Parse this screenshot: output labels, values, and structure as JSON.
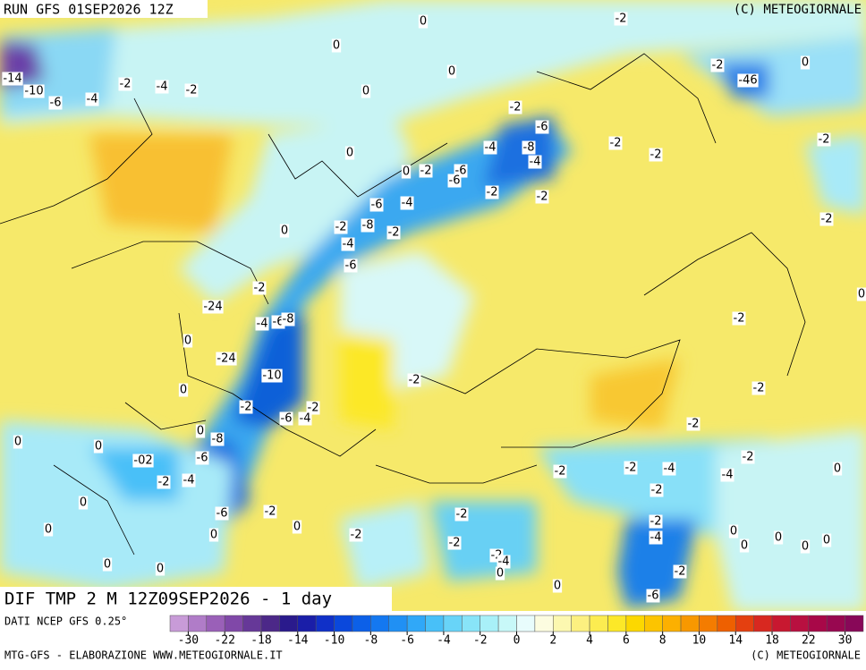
{
  "header": {
    "run": "RUN GFS 01SEP2026 12Z",
    "copyright": "(C) METEOGIORNALE"
  },
  "map": {
    "title": "DIF TMP 2 M 12Z09SEP2026 - 1 day",
    "labels": [
      "-14",
      "-10",
      "-6",
      "-4",
      "-2",
      "-4",
      "-2",
      "0",
      "0",
      "0",
      "0",
      "-2",
      "-2",
      "-46",
      "0",
      "-2",
      "-6",
      "-8",
      "-4",
      "-4",
      "-2",
      "-2",
      "-2",
      "-2",
      "-6",
      "-6",
      "-2",
      "-2",
      "0",
      "-6",
      "-4",
      "0",
      "0",
      "-2",
      "-8",
      "-2",
      "-4",
      "-6",
      "-2",
      "-2",
      "-24",
      "-4",
      "-6",
      "-8",
      "0",
      "-24",
      "-10",
      "0",
      "-2",
      "-2",
      "0",
      "-2",
      "-2",
      "-2",
      "-6",
      "-4",
      "0",
      "-8",
      "0",
      "0",
      "-02",
      "-6",
      "-2",
      "-4",
      "-2",
      "-2",
      "-4",
      "-2",
      "-2",
      "-2",
      "-4",
      "0",
      "0",
      "-6",
      "-2",
      "-2",
      "-2",
      "-4",
      "0",
      "0",
      "0",
      "-2",
      "-2",
      "0",
      "0",
      "0",
      "0",
      "0",
      "-2",
      "-4",
      "-2",
      "0",
      "0",
      "0",
      "0",
      "-6"
    ]
  },
  "footer": {
    "source": "DATI NCEP GFS 0.25°",
    "credit": "MTG-GFS - ELABORAZIONE WWW.METEOGIORNALE.IT",
    "copyright": "(C) METEOGIORNALE",
    "colorbar": {
      "labels": [
        -30,
        -22,
        -18,
        -14,
        -10,
        -8,
        -6,
        -4,
        -2,
        0,
        2,
        4,
        6,
        8,
        10,
        14,
        18,
        22,
        30
      ],
      "colors": [
        "#c89bd8",
        "#b07cc8",
        "#9a60b8",
        "#8048a8",
        "#663898",
        "#4c2888",
        "#2a1a8c",
        "#1a1ea8",
        "#1030c8",
        "#0a48dc",
        "#0c60e8",
        "#1478f0",
        "#2090f4",
        "#30a8f8",
        "#48c0f8",
        "#68d4f8",
        "#88e4f8",
        "#a8f0f8",
        "#c8f8f8",
        "#e8fcfc",
        "#fcfce0",
        "#fcf8b0",
        "#fcf080",
        "#fcec50",
        "#fce828",
        "#fcd800",
        "#fcc400",
        "#fcb000",
        "#f89800",
        "#f47c00",
        "#ee6000",
        "#e44010",
        "#d82820",
        "#c81830",
        "#b81040",
        "#a80848",
        "#980850",
        "#880858"
      ]
    }
  }
}
